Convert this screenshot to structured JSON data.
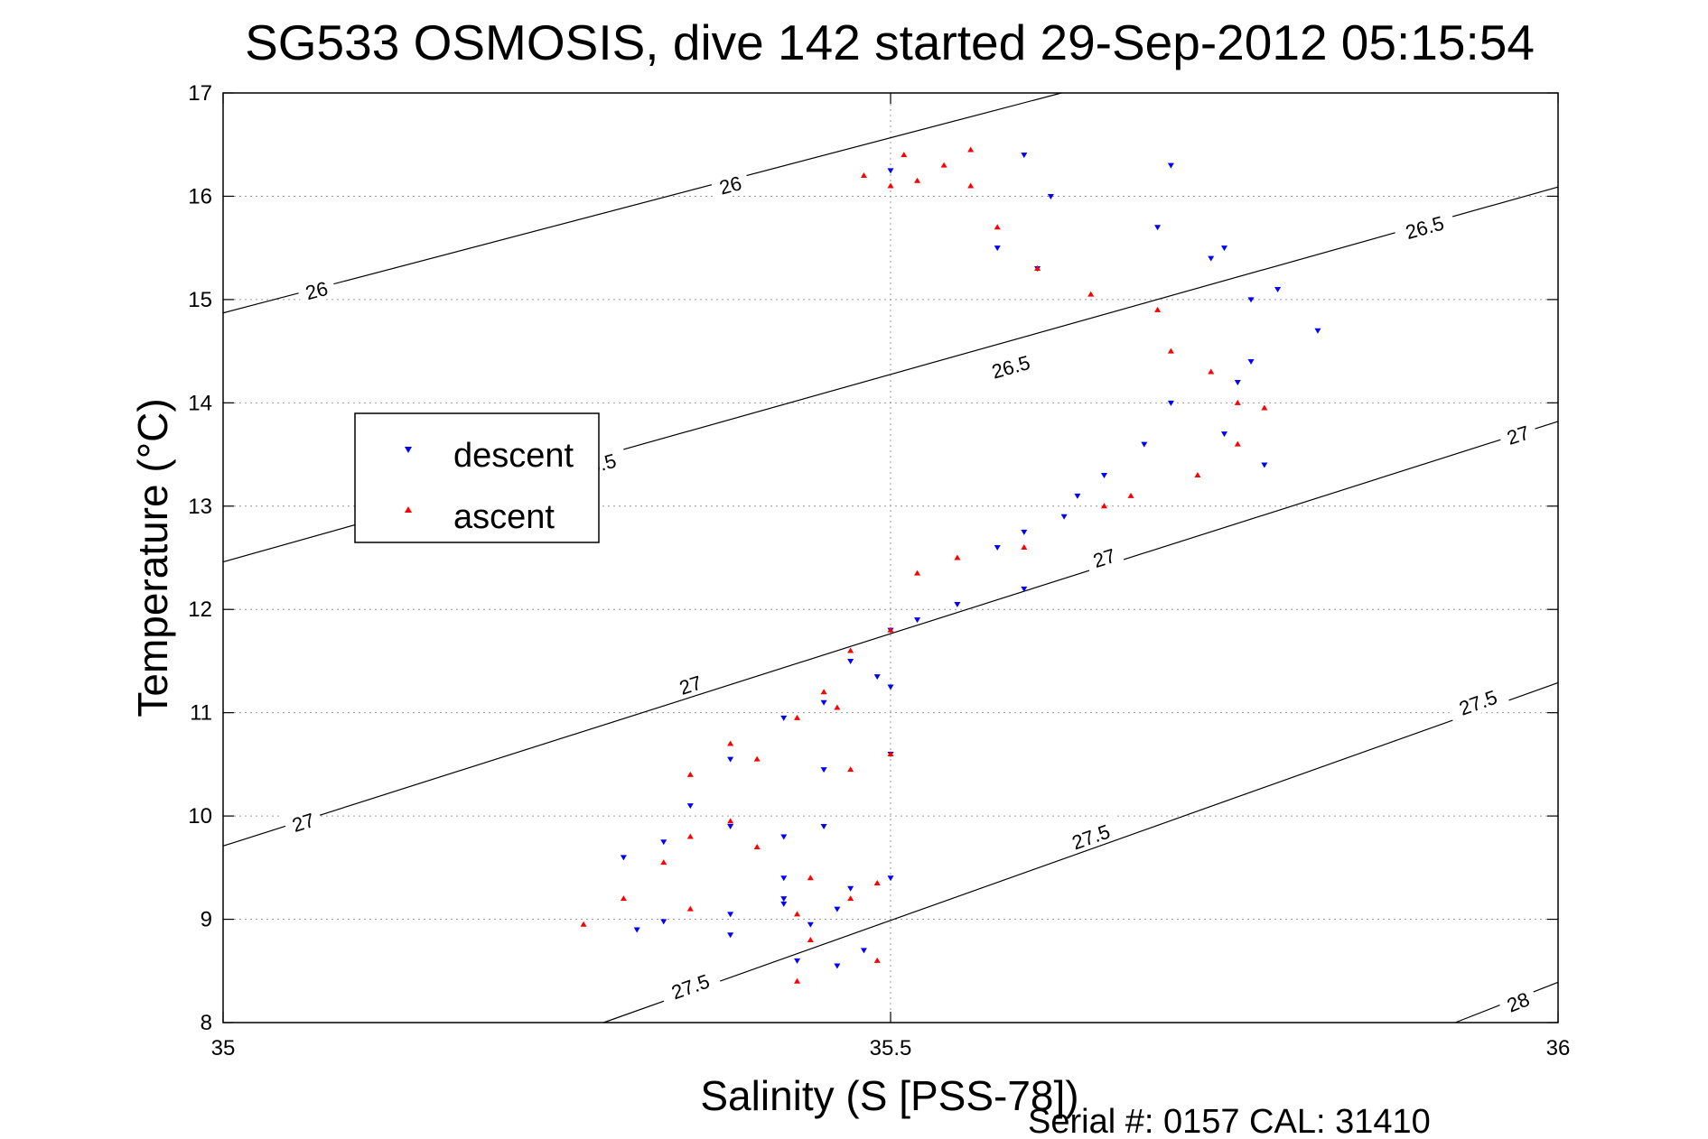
{
  "chart_data": {
    "type": "scatter",
    "title": "SG533 OSMOSIS, dive 142 started 29-Sep-2012 05:15:54",
    "xlabel": "Salinity (S [PSS-78])",
    "ylabel": "Temperature (°C)",
    "xlim": [
      35,
      36
    ],
    "ylim": [
      8,
      17
    ],
    "xticks": [
      35,
      35.5,
      36
    ],
    "xtick_labels": [
      "35",
      "35.5",
      "36"
    ],
    "yticks": [
      8,
      9,
      10,
      11,
      12,
      13,
      14,
      15,
      16,
      17
    ],
    "ytick_labels": [
      "8",
      "9",
      "10",
      "11",
      "12",
      "13",
      "14",
      "15",
      "16",
      "17"
    ],
    "grid": true,
    "legend_position": "upper-left",
    "footer": "Serial #: 0157  CAL: 31410",
    "isopycnals": [
      {
        "label": "26",
        "points": [
          [
            35,
            14.87
          ],
          [
            35.628,
            17
          ]
        ],
        "label_positions": [
          [
            35.07,
            15.09
          ],
          [
            35.38,
            16.11
          ]
        ]
      },
      {
        "label": "26.5",
        "points": [
          [
            35,
            12.46
          ],
          [
            36,
            16.09
          ]
        ],
        "label_positions": [
          [
            35.28,
            13.4
          ],
          [
            35.59,
            14.35
          ],
          [
            35.9,
            15.7
          ]
        ]
      },
      {
        "label": "27",
        "points": [
          [
            35,
            9.71
          ],
          [
            36,
            13.82
          ]
        ],
        "label_positions": [
          [
            35.06,
            9.94
          ],
          [
            35.35,
            11.27
          ],
          [
            35.66,
            12.5
          ],
          [
            35.97,
            13.69
          ]
        ]
      },
      {
        "label": "27.5",
        "points": [
          [
            35.285,
            8
          ],
          [
            36,
            11.29
          ]
        ],
        "label_positions": [
          [
            35.35,
            8.35
          ],
          [
            35.65,
            9.8
          ],
          [
            35.94,
            11.1
          ]
        ]
      },
      {
        "label": "28",
        "points": [
          [
            35.923,
            8
          ],
          [
            36,
            8.39
          ]
        ],
        "label_positions": [
          [
            35.97,
            8.2
          ]
        ]
      }
    ],
    "series": [
      {
        "name": "descent",
        "color": "#0000ff",
        "marker": "triangle-down",
        "x": [
          35.5,
          35.71,
          35.75,
          35.79,
          35.77,
          35.76,
          35.71,
          35.69,
          35.66,
          35.64,
          35.63,
          35.6,
          35.58,
          35.6,
          35.55,
          35.52,
          35.5,
          35.47,
          35.49,
          35.5,
          35.45,
          35.42,
          35.5,
          35.45,
          35.38,
          35.35,
          35.45,
          35.42,
          35.38,
          35.33,
          35.3,
          35.42,
          35.47,
          35.42,
          35.46,
          35.44,
          35.5,
          35.42,
          35.38,
          35.33,
          35.31,
          35.38,
          35.48,
          35.43,
          35.46,
          35.6,
          35.62,
          35.58,
          35.61,
          35.7,
          35.74,
          35.77,
          35.82,
          35.75,
          35.78
        ],
        "y": [
          16.25,
          16.3,
          15.5,
          15.1,
          14.4,
          14.2,
          14.0,
          13.6,
          13.3,
          13.1,
          12.9,
          12.75,
          12.6,
          12.2,
          12.05,
          11.9,
          11.8,
          11.5,
          11.35,
          11.25,
          11.1,
          10.95,
          10.6,
          10.45,
          10.55,
          10.1,
          9.9,
          9.8,
          9.9,
          9.75,
          9.6,
          9.4,
          9.3,
          9.2,
          9.1,
          8.95,
          9.4,
          9.15,
          9.05,
          8.98,
          8.9,
          8.85,
          8.7,
          8.6,
          8.55,
          16.4,
          16.0,
          15.5,
          15.3,
          15.7,
          15.4,
          15.0,
          14.7,
          13.7,
          13.4
        ]
      },
      {
        "name": "ascent",
        "color": "#ff0000",
        "marker": "triangle-up",
        "x": [
          35.51,
          35.58,
          35.61,
          35.65,
          35.7,
          35.71,
          35.74,
          35.76,
          35.78,
          35.76,
          35.73,
          35.68,
          35.66,
          35.6,
          35.55,
          35.52,
          35.5,
          35.47,
          35.45,
          35.46,
          35.43,
          35.38,
          35.35,
          35.4,
          35.47,
          35.5,
          35.38,
          35.35,
          35.33,
          35.4,
          35.44,
          35.3,
          35.27,
          35.35,
          35.43,
          35.47,
          35.49,
          35.44,
          35.43,
          35.49,
          35.52,
          35.56,
          35.54,
          35.56,
          35.5,
          35.48
        ],
        "y": [
          16.4,
          15.7,
          15.3,
          15.05,
          14.9,
          14.5,
          14.3,
          14.0,
          13.95,
          13.6,
          13.3,
          13.1,
          13.0,
          12.6,
          12.5,
          12.35,
          11.8,
          11.6,
          11.2,
          11.05,
          10.95,
          10.7,
          10.4,
          10.55,
          10.45,
          10.6,
          9.95,
          9.8,
          9.55,
          9.7,
          9.4,
          9.2,
          8.95,
          9.1,
          9.05,
          9.2,
          9.35,
          8.8,
          8.4,
          8.6,
          16.15,
          16.1,
          16.3,
          16.45,
          16.1,
          16.2
        ]
      }
    ]
  }
}
